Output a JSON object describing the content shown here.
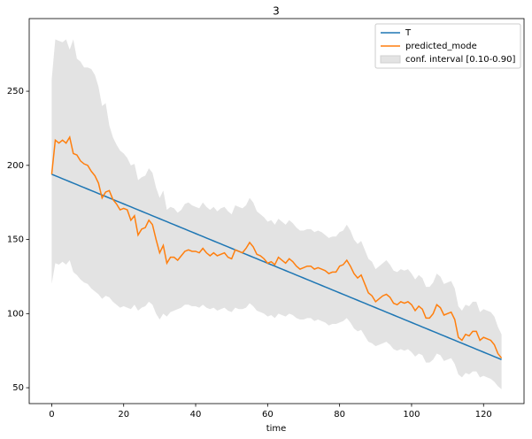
{
  "chart_data": {
    "type": "line",
    "title": "3",
    "xlabel": "time",
    "x": [
      0,
      1,
      2,
      3,
      4,
      5,
      6,
      7,
      8,
      9,
      10,
      11,
      12,
      13,
      14,
      15,
      16,
      17,
      18,
      19,
      20,
      21,
      22,
      23,
      24,
      25,
      26,
      27,
      28,
      29,
      30,
      31,
      32,
      33,
      34,
      35,
      36,
      37,
      38,
      39,
      40,
      41,
      42,
      43,
      44,
      45,
      46,
      47,
      48,
      49,
      50,
      51,
      52,
      53,
      54,
      55,
      56,
      57,
      58,
      59,
      60,
      61,
      62,
      63,
      64,
      65,
      66,
      67,
      68,
      69,
      70,
      71,
      72,
      73,
      74,
      75,
      76,
      77,
      78,
      79,
      80,
      81,
      82,
      83,
      84,
      85,
      86,
      87,
      88,
      89,
      90,
      91,
      92,
      93,
      94,
      95,
      96,
      97,
      98,
      99,
      100,
      101,
      102,
      103,
      104,
      105,
      106,
      107,
      108,
      109,
      110,
      111,
      112,
      113,
      114,
      115,
      116,
      117,
      118,
      119,
      120,
      121,
      122,
      123,
      124,
      125
    ],
    "xlim": [
      -6.25,
      131.25
    ],
    "xticks": [
      0,
      20,
      40,
      60,
      80,
      100,
      120
    ],
    "ylim": [
      39.3,
      299
    ],
    "yticks": [
      50,
      100,
      150,
      200,
      250
    ],
    "legend": "upper right",
    "series": [
      {
        "name": "T",
        "color": "#1f77b4",
        "values": [
          194,
          193,
          192,
          191,
          190,
          189,
          188,
          187,
          186,
          185,
          184,
          183,
          182,
          181,
          180,
          179,
          178,
          177,
          176,
          175,
          174,
          173,
          172,
          171,
          170,
          169,
          168,
          167,
          166,
          165,
          164,
          163,
          162,
          161,
          160,
          159,
          158,
          157,
          156,
          155,
          154,
          153,
          152,
          151,
          150,
          149,
          148,
          147,
          146,
          145,
          144,
          143,
          142,
          141,
          140,
          139,
          138,
          137,
          136,
          135,
          134,
          133,
          132,
          131,
          130,
          129,
          128,
          127,
          126,
          125,
          124,
          123,
          122,
          121,
          120,
          119,
          118,
          117,
          116,
          115,
          114,
          113,
          112,
          111,
          110,
          109,
          108,
          107,
          106,
          105,
          104,
          103,
          102,
          101,
          100,
          99,
          98,
          97,
          96,
          95,
          94,
          93,
          92,
          91,
          90,
          89,
          88,
          87,
          86,
          85,
          84,
          83,
          82,
          81,
          80,
          79,
          78,
          77,
          76,
          75,
          74,
          73,
          72,
          71,
          70,
          69
        ]
      },
      {
        "name": "predicted_mode",
        "color": "#ff7f0e",
        "values": [
          194,
          217,
          215,
          217,
          215,
          219,
          208,
          207,
          203,
          201,
          200,
          196,
          193,
          188,
          178,
          182,
          183,
          177,
          174,
          170,
          171,
          170,
          163,
          166,
          153,
          157,
          158,
          163,
          160,
          150,
          141,
          146,
          134,
          138,
          138,
          136,
          139,
          142,
          143,
          142,
          142,
          141,
          144,
          141,
          139,
          141,
          139,
          140,
          141,
          138,
          137,
          143,
          142,
          141,
          144,
          148,
          145,
          140,
          139,
          137,
          134,
          135,
          133,
          138,
          136,
          134,
          137,
          135,
          132,
          130,
          131,
          132,
          132,
          130,
          131,
          130,
          129,
          127,
          128,
          128,
          132,
          133,
          136,
          132,
          127,
          124,
          126,
          120,
          114,
          112,
          108,
          110,
          112,
          113,
          111,
          107,
          106,
          108,
          107,
          108,
          106,
          102,
          105,
          103,
          97,
          97,
          100,
          106,
          104,
          99,
          100,
          101,
          96,
          84,
          82,
          86,
          85,
          88,
          88,
          82,
          84,
          83,
          82,
          79,
          73,
          70
        ]
      },
      {
        "name": "conf. interval [0.10-0.90]",
        "color": "#e3e3e3",
        "upper": [
          258,
          285,
          284,
          283,
          285,
          278,
          285,
          272,
          270,
          266,
          266,
          265,
          261,
          253,
          240,
          242,
          227,
          219,
          214,
          210,
          208,
          205,
          200,
          201,
          190,
          192,
          193,
          198,
          195,
          185,
          178,
          183,
          170,
          172,
          171,
          168,
          170,
          174,
          175,
          173,
          172,
          171,
          175,
          172,
          170,
          172,
          169,
          171,
          172,
          169,
          167,
          173,
          172,
          171,
          173,
          178,
          175,
          169,
          167,
          165,
          162,
          163,
          160,
          164,
          162,
          160,
          163,
          161,
          158,
          156,
          156,
          157,
          157,
          155,
          156,
          155,
          153,
          151,
          152,
          152,
          155,
          156,
          160,
          156,
          150,
          147,
          149,
          143,
          137,
          135,
          130,
          132,
          134,
          136,
          133,
          129,
          128,
          130,
          129,
          130,
          127,
          123,
          126,
          124,
          118,
          118,
          121,
          127,
          125,
          120,
          121,
          122,
          117,
          105,
          102,
          106,
          105,
          108,
          108,
          101,
          103,
          102,
          101,
          98,
          91,
          86
        ],
        "lower": [
          120,
          134,
          133,
          135,
          133,
          136,
          128,
          126,
          123,
          121,
          120,
          117,
          115,
          113,
          110,
          112,
          111,
          108,
          106,
          104,
          105,
          104,
          103,
          106,
          102,
          104,
          105,
          108,
          106,
          100,
          96,
          100,
          98,
          101,
          102,
          103,
          104,
          106,
          106,
          105,
          105,
          104,
          106,
          104,
          103,
          104,
          102,
          103,
          104,
          102,
          101,
          104,
          103,
          103,
          104,
          107,
          105,
          102,
          101,
          100,
          98,
          99,
          97,
          100,
          99,
          98,
          100,
          99,
          97,
          96,
          96,
          97,
          97,
          95,
          96,
          95,
          94,
          92,
          93,
          93,
          94,
          95,
          97,
          94,
          90,
          88,
          89,
          85,
          81,
          80,
          78,
          79,
          80,
          81,
          79,
          76,
          75,
          76,
          75,
          76,
          74,
          71,
          73,
          72,
          67,
          67,
          69,
          73,
          72,
          68,
          69,
          70,
          66,
          59,
          57,
          60,
          59,
          61,
          61,
          57,
          58,
          57,
          56,
          54,
          51,
          49
        ]
      }
    ]
  }
}
